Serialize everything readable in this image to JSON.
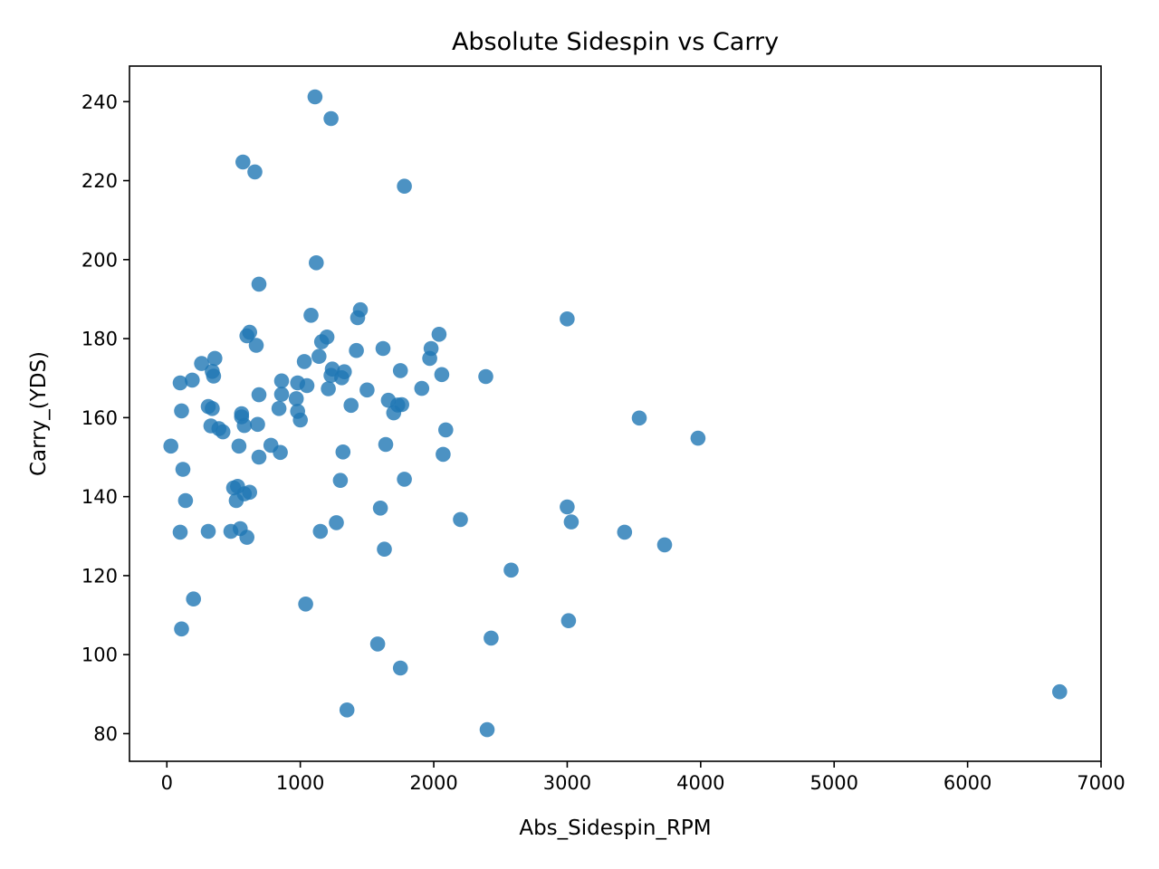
{
  "chart_data": {
    "type": "scatter",
    "title": "Absolute Sidespin vs Carry",
    "xlabel": "Abs_Sidespin_RPM",
    "ylabel": "Carry_(YDS)",
    "xlim": [
      -280,
      7000
    ],
    "ylim": [
      73,
      249
    ],
    "xticks": [
      0,
      1000,
      2000,
      3000,
      4000,
      5000,
      6000,
      7000
    ],
    "yticks": [
      80,
      100,
      120,
      140,
      160,
      180,
      200,
      220,
      240
    ],
    "grid": false,
    "marker_color": "#1f77b4",
    "points": [
      {
        "x": 30,
        "y": 152.8
      },
      {
        "x": 100,
        "y": 168.8
      },
      {
        "x": 110,
        "y": 161.7
      },
      {
        "x": 120,
        "y": 146.9
      },
      {
        "x": 140,
        "y": 139.0
      },
      {
        "x": 100,
        "y": 131.0
      },
      {
        "x": 110,
        "y": 106.5
      },
      {
        "x": 200,
        "y": 114.1
      },
      {
        "x": 190,
        "y": 169.5
      },
      {
        "x": 260,
        "y": 173.7
      },
      {
        "x": 310,
        "y": 162.8
      },
      {
        "x": 340,
        "y": 171.7
      },
      {
        "x": 350,
        "y": 170.5
      },
      {
        "x": 360,
        "y": 175.0
      },
      {
        "x": 330,
        "y": 157.9
      },
      {
        "x": 340,
        "y": 162.3
      },
      {
        "x": 390,
        "y": 157.2
      },
      {
        "x": 420,
        "y": 156.4
      },
      {
        "x": 310,
        "y": 131.2
      },
      {
        "x": 480,
        "y": 131.2
      },
      {
        "x": 500,
        "y": 142.2
      },
      {
        "x": 520,
        "y": 139.0
      },
      {
        "x": 530,
        "y": 142.6
      },
      {
        "x": 550,
        "y": 131.9
      },
      {
        "x": 540,
        "y": 152.8
      },
      {
        "x": 560,
        "y": 161.0
      },
      {
        "x": 560,
        "y": 160.2
      },
      {
        "x": 580,
        "y": 158.0
      },
      {
        "x": 580,
        "y": 140.7
      },
      {
        "x": 600,
        "y": 129.7
      },
      {
        "x": 620,
        "y": 141.1
      },
      {
        "x": 600,
        "y": 180.7
      },
      {
        "x": 620,
        "y": 181.6
      },
      {
        "x": 670,
        "y": 178.3
      },
      {
        "x": 690,
        "y": 165.8
      },
      {
        "x": 680,
        "y": 158.3
      },
      {
        "x": 690,
        "y": 150.0
      },
      {
        "x": 690,
        "y": 193.8
      },
      {
        "x": 570,
        "y": 224.7
      },
      {
        "x": 660,
        "y": 222.2
      },
      {
        "x": 780,
        "y": 153.0
      },
      {
        "x": 840,
        "y": 162.3
      },
      {
        "x": 850,
        "y": 151.2
      },
      {
        "x": 860,
        "y": 169.3
      },
      {
        "x": 860,
        "y": 165.9
      },
      {
        "x": 970,
        "y": 164.8
      },
      {
        "x": 980,
        "y": 168.8
      },
      {
        "x": 980,
        "y": 161.6
      },
      {
        "x": 1000,
        "y": 159.4
      },
      {
        "x": 1030,
        "y": 174.2
      },
      {
        "x": 1040,
        "y": 112.8
      },
      {
        "x": 1050,
        "y": 168.1
      },
      {
        "x": 1080,
        "y": 185.9
      },
      {
        "x": 1120,
        "y": 199.2
      },
      {
        "x": 1110,
        "y": 241.2
      },
      {
        "x": 1140,
        "y": 175.5
      },
      {
        "x": 1160,
        "y": 179.2
      },
      {
        "x": 1200,
        "y": 180.4
      },
      {
        "x": 1210,
        "y": 167.3
      },
      {
        "x": 1230,
        "y": 170.7
      },
      {
        "x": 1240,
        "y": 172.3
      },
      {
        "x": 1230,
        "y": 235.7
      },
      {
        "x": 1150,
        "y": 131.2
      },
      {
        "x": 1270,
        "y": 133.4
      },
      {
        "x": 1300,
        "y": 144.1
      },
      {
        "x": 1310,
        "y": 170.1
      },
      {
        "x": 1320,
        "y": 151.3
      },
      {
        "x": 1330,
        "y": 171.6
      },
      {
        "x": 1350,
        "y": 86.0
      },
      {
        "x": 1380,
        "y": 163.1
      },
      {
        "x": 1420,
        "y": 177.0
      },
      {
        "x": 1430,
        "y": 185.3
      },
      {
        "x": 1450,
        "y": 187.3
      },
      {
        "x": 1500,
        "y": 167.0
      },
      {
        "x": 1580,
        "y": 102.7
      },
      {
        "x": 1600,
        "y": 137.1
      },
      {
        "x": 1620,
        "y": 177.5
      },
      {
        "x": 1630,
        "y": 126.7
      },
      {
        "x": 1640,
        "y": 153.2
      },
      {
        "x": 1660,
        "y": 164.4
      },
      {
        "x": 1700,
        "y": 161.2
      },
      {
        "x": 1730,
        "y": 163.2
      },
      {
        "x": 1750,
        "y": 171.9
      },
      {
        "x": 1760,
        "y": 163.3
      },
      {
        "x": 1750,
        "y": 96.6
      },
      {
        "x": 1780,
        "y": 144.4
      },
      {
        "x": 1780,
        "y": 218.6
      },
      {
        "x": 1910,
        "y": 167.4
      },
      {
        "x": 1970,
        "y": 175.0
      },
      {
        "x": 1980,
        "y": 177.5
      },
      {
        "x": 2040,
        "y": 181.1
      },
      {
        "x": 2060,
        "y": 170.9
      },
      {
        "x": 2070,
        "y": 150.7
      },
      {
        "x": 2090,
        "y": 156.9
      },
      {
        "x": 2200,
        "y": 134.2
      },
      {
        "x": 2390,
        "y": 170.4
      },
      {
        "x": 2400,
        "y": 81.0
      },
      {
        "x": 2430,
        "y": 104.2
      },
      {
        "x": 2580,
        "y": 121.4
      },
      {
        "x": 3000,
        "y": 185.0
      },
      {
        "x": 3000,
        "y": 137.4
      },
      {
        "x": 3030,
        "y": 133.6
      },
      {
        "x": 3010,
        "y": 108.6
      },
      {
        "x": 3430,
        "y": 131.0
      },
      {
        "x": 3540,
        "y": 159.9
      },
      {
        "x": 3730,
        "y": 127.8
      },
      {
        "x": 3980,
        "y": 154.8
      },
      {
        "x": 6690,
        "y": 90.6
      }
    ]
  }
}
